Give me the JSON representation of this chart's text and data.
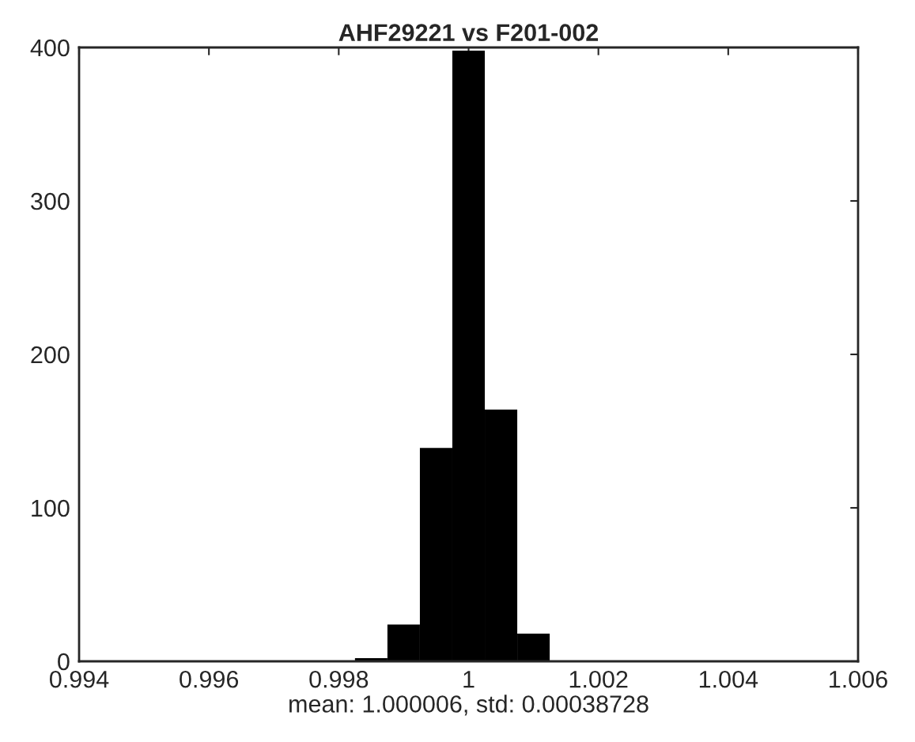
{
  "chart_data": {
    "type": "histogram",
    "title": "AHF29221 vs F201-002",
    "xlabel": "mean: 1.000006, std: 0.00038728",
    "bins": [
      0.99825,
      0.99875,
      0.99925,
      0.99975,
      1.00025,
      1.00075,
      1.00125
    ],
    "values": [
      2,
      24,
      139,
      398,
      164,
      18
    ],
    "color": "#000000",
    "xlim": [
      0.994,
      1.006
    ],
    "xticks": [
      0.994,
      0.996,
      0.998,
      1,
      1.002,
      1.004,
      1.006
    ],
    "ylim": [
      0,
      400
    ],
    "yticks": [
      0,
      100,
      200,
      300,
      400
    ],
    "grid": false
  }
}
